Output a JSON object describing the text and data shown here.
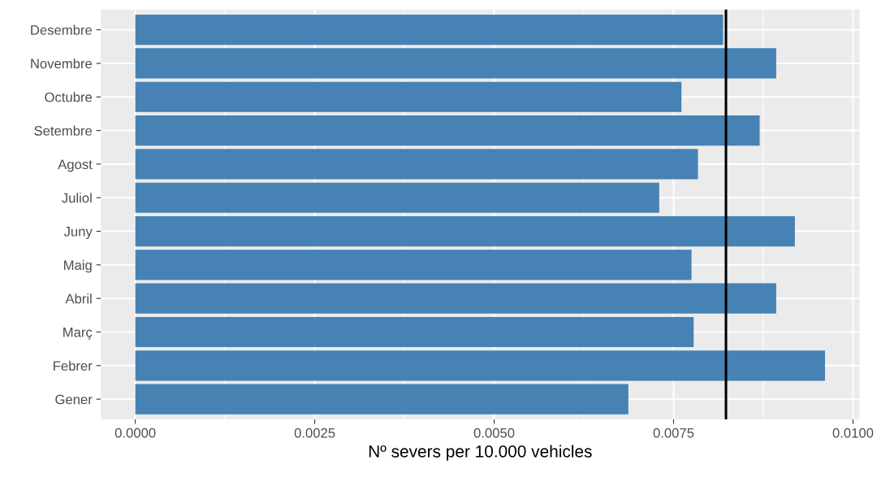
{
  "chart_data": {
    "type": "bar",
    "orientation": "horizontal",
    "xlabel": "Nº severs per 10.000 vehicles",
    "categories": [
      "Desembre",
      "Novembre",
      "Octubre",
      "Setembre",
      "Agost",
      "Juliol",
      "Juny",
      "Maig",
      "Abril",
      "Març",
      "Febrer",
      "Gener"
    ],
    "values": [
      0.00819,
      0.00893,
      0.00761,
      0.0087,
      0.00784,
      0.0073,
      0.00919,
      0.00775,
      0.00893,
      0.00778,
      0.00961,
      0.00687
    ],
    "color": "#4682b4",
    "xlim": [
      -0.00048,
      0.01009
    ],
    "xticks": [
      {
        "value": 0,
        "label": "0.0000"
      },
      {
        "value": 0.0025,
        "label": "0.0025"
      },
      {
        "value": 0.005,
        "label": "0.0050"
      },
      {
        "value": 0.0075,
        "label": "0.0075"
      },
      {
        "value": 0.01,
        "label": "0.0100"
      }
    ],
    "ref_lines": [
      {
        "axis": "x",
        "value": 0.00823,
        "color": "#000000"
      }
    ],
    "grid": true
  }
}
